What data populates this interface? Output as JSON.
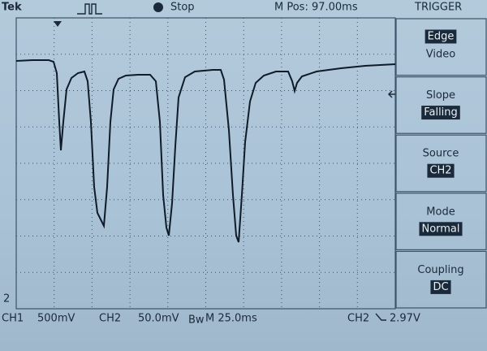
{
  "header": {
    "brand": "Tek",
    "status": "Stop",
    "position": "M Pos: 97.00ms",
    "menu_title": "TRIGGER"
  },
  "menu": [
    {
      "options": [
        "Edge",
        "Video"
      ]
    },
    {
      "label": "Slope",
      "value": "Falling"
    },
    {
      "label": "Source",
      "value": "CH2"
    },
    {
      "label": "Mode",
      "value": "Normal"
    },
    {
      "label": "Coupling",
      "value": "DC"
    }
  ],
  "footer": {
    "ch1": "CH1",
    "ch1_scale": "500mV",
    "ch2": "CH2",
    "ch2_scale": "50.0mV",
    "bw": "Bw",
    "timebase": "M 25.0ms",
    "trigger_source": "CH2",
    "trigger_level": "2.97V"
  }
}
